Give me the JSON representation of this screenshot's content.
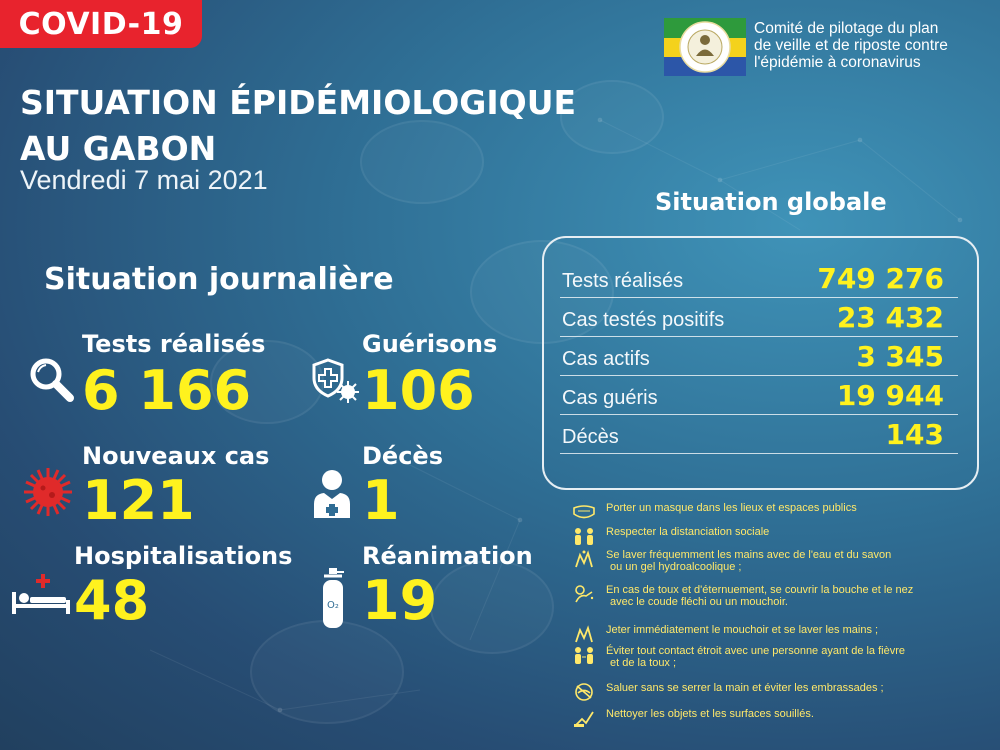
{
  "badge": "COVID-19",
  "title": {
    "line1": "SITUATION ÉPIDÉMIOLOGIQUE",
    "line2": "AU GABON",
    "date": "Vendredi 7 mai 2021"
  },
  "committee": {
    "line1": "Comité de pilotage du plan",
    "line2": "de veille et de riposte contre",
    "line3": "l'épidémie à coronavirus",
    "flag_colors": [
      "#2e9a3c",
      "#f4d21c",
      "#2c56a8"
    ]
  },
  "daily": {
    "heading": "Situation journalière",
    "tests": {
      "label": "Tests réalisés",
      "value": "6 166"
    },
    "recoveries": {
      "label": "Guérisons",
      "value": "106"
    },
    "new_cases": {
      "label": "Nouveaux cas",
      "value": "121"
    },
    "deaths": {
      "label": "Décès",
      "value": "1"
    },
    "hospitalisations": {
      "label": "Hospitalisations",
      "value": "48"
    },
    "icu": {
      "label": "Réanimation",
      "value": "19"
    }
  },
  "global": {
    "heading": "Situation globale",
    "rows": [
      {
        "label": "Tests réalisés",
        "value": "749 276"
      },
      {
        "label": "Cas testés positifs",
        "value": "23 432"
      },
      {
        "label": "Cas actifs",
        "value": "3 345"
      },
      {
        "label": "Cas guéris",
        "value": "19 944"
      },
      {
        "label": "Décès",
        "value": "143"
      }
    ]
  },
  "advice": [
    {
      "icon": "mask-icon",
      "text": "Porter un masque dans les lieux et espaces publics"
    },
    {
      "icon": "distancing-icon",
      "text": "Respecter la distanciation sociale"
    },
    {
      "icon": "handwash-icon",
      "line1": "Se laver fréquemment les mains avec de l'eau et du savon",
      "line2": "ou un gel hydroalcoolique ;"
    },
    {
      "icon": "cough-icon",
      "line1": "En cas de toux et d'éternuement, se couvrir la bouche et le nez",
      "line2": "avec le coude fléchi ou un mouchoir."
    },
    {
      "icon": "tissue-icon",
      "text": "Jeter immédiatement le mouchoir et se laver les mains ;"
    },
    {
      "icon": "avoid-contact-icon",
      "line1": "Éviter tout contact étroit avec une personne ayant de la fièvre",
      "line2": "et de la toux ;"
    },
    {
      "icon": "no-handshake-icon",
      "text": "Saluer sans se serrer la main et éviter les embrassades ;"
    },
    {
      "icon": "cleaning-icon",
      "text": "Nettoyer les objets et les surfaces souillés."
    }
  ],
  "colors": {
    "accent_yellow": "#fff21e",
    "badge_red": "#e8232d",
    "icon_red": "#e02a2a",
    "advice_yellow": "#ffe86a"
  }
}
